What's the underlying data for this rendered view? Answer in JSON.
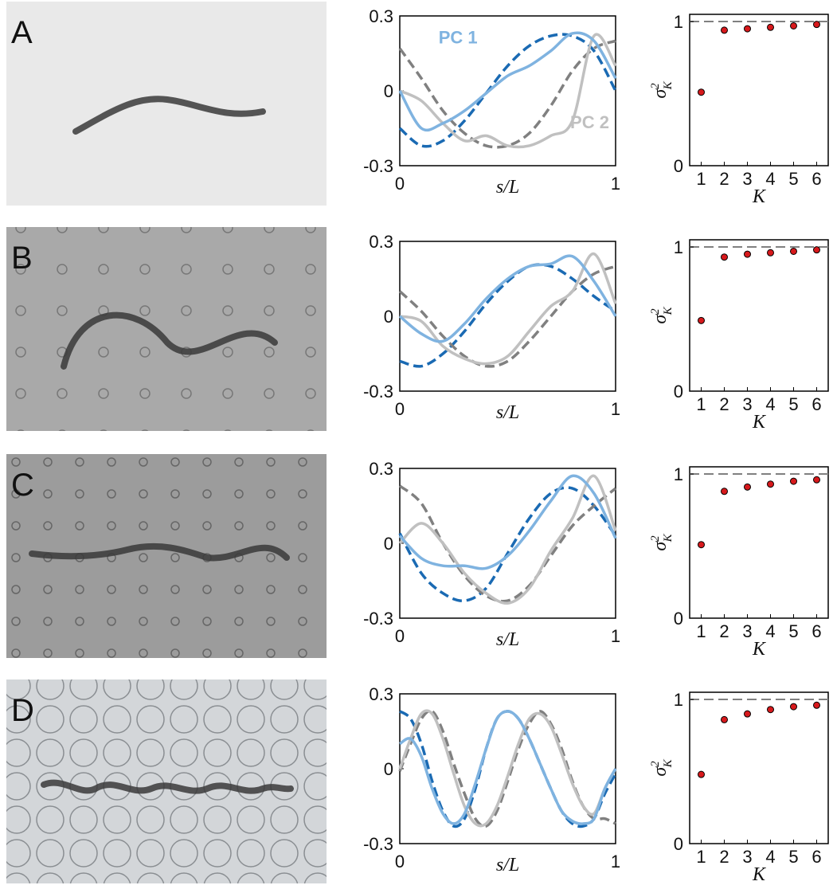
{
  "chart_data": [
    {
      "type": "line",
      "panel_label": "A",
      "x": [
        0,
        0.1,
        0.2,
        0.3,
        0.4,
        0.5,
        0.6,
        0.7,
        0.8,
        0.9,
        1
      ],
      "series": [
        {
          "color": "#1a6ab3",
          "dash": true,
          "values": [
            -0.15,
            -0.22,
            -0.2,
            -0.12,
            -0.01,
            0.1,
            0.18,
            0.22,
            0.22,
            0.16,
            0.0
          ]
        },
        {
          "color": "#808080",
          "dash": true,
          "values": [
            0.17,
            0.05,
            -0.08,
            -0.17,
            -0.22,
            -0.22,
            -0.17,
            -0.06,
            0.08,
            0.17,
            0.2
          ]
        },
        {
          "color": "#c0c0c0",
          "dash": false,
          "values": [
            0.0,
            -0.04,
            -0.13,
            -0.2,
            -0.18,
            -0.22,
            -0.22,
            -0.18,
            -0.12,
            0.22,
            0.1
          ]
        },
        {
          "color": "#7fb3e0",
          "dash": false,
          "values": [
            0.0,
            -0.15,
            -0.13,
            -0.08,
            -0.01,
            0.06,
            0.1,
            0.16,
            0.23,
            0.2,
            0.05
          ]
        }
      ],
      "annotations": [
        {
          "text": "PC 1",
          "color": "#7fb3e0"
        },
        {
          "text": "PC 2",
          "color": "#c0c0c0"
        }
      ],
      "xlim": [
        0,
        1
      ],
      "ylim": [
        -0.3,
        0.3
      ],
      "xticks": [
        0,
        1
      ],
      "yticks": [
        -0.3,
        0,
        0.3
      ],
      "x_label": "s/L"
    },
    {
      "type": "scatter",
      "x": [
        1,
        2,
        3,
        4,
        5,
        6
      ],
      "values": [
        0.51,
        0.94,
        0.95,
        0.96,
        0.97,
        0.98
      ],
      "color": "#d7191c",
      "hline": 1,
      "hline_color": "#808080",
      "xlim": [
        0.5,
        6.5
      ],
      "ylim": [
        0,
        1.05
      ],
      "xticks": [
        1,
        2,
        3,
        4,
        5,
        6
      ],
      "yticks": [
        0,
        1
      ],
      "x_label": "K",
      "y_label": "σ",
      "y_label_sup": "2",
      "y_label_sub": "K"
    },
    {
      "type": "line",
      "panel_label": "B",
      "x": [
        0,
        0.1,
        0.2,
        0.3,
        0.4,
        0.5,
        0.6,
        0.7,
        0.8,
        0.9,
        1
      ],
      "series": [
        {
          "color": "#1a6ab3",
          "dash": true,
          "values": [
            -0.18,
            -0.2,
            -0.15,
            -0.06,
            0.05,
            0.14,
            0.2,
            0.2,
            0.15,
            0.08,
            0.02
          ]
        },
        {
          "color": "#808080",
          "dash": true,
          "values": [
            0.1,
            0.02,
            -0.08,
            -0.16,
            -0.2,
            -0.18,
            -0.1,
            0.0,
            0.1,
            0.17,
            0.2
          ]
        },
        {
          "color": "#c0c0c0",
          "dash": false,
          "values": [
            0.0,
            -0.02,
            -0.12,
            -0.17,
            -0.19,
            -0.16,
            -0.06,
            0.04,
            0.1,
            0.25,
            0.05
          ]
        },
        {
          "color": "#7fb3e0",
          "dash": false,
          "values": [
            0.0,
            -0.07,
            -0.1,
            -0.03,
            0.07,
            0.15,
            0.2,
            0.21,
            0.24,
            0.14,
            0.0
          ]
        }
      ],
      "xlim": [
        0,
        1
      ],
      "ylim": [
        -0.3,
        0.3
      ],
      "xticks": [
        0,
        1
      ],
      "yticks": [
        -0.3,
        0,
        0.3
      ],
      "x_label": "s/L"
    },
    {
      "type": "scatter",
      "x": [
        1,
        2,
        3,
        4,
        5,
        6
      ],
      "values": [
        0.49,
        0.93,
        0.95,
        0.96,
        0.97,
        0.98
      ],
      "color": "#d7191c",
      "hline": 1,
      "hline_color": "#808080",
      "xlim": [
        0.5,
        6.5
      ],
      "ylim": [
        0,
        1.05
      ],
      "xticks": [
        1,
        2,
        3,
        4,
        5,
        6
      ],
      "yticks": [
        0,
        1
      ],
      "x_label": "K",
      "y_label": "σ",
      "y_label_sup": "2",
      "y_label_sub": "K"
    },
    {
      "type": "line",
      "panel_label": "C",
      "x": [
        0,
        0.1,
        0.2,
        0.3,
        0.4,
        0.5,
        0.6,
        0.7,
        0.8,
        0.9,
        1
      ],
      "series": [
        {
          "color": "#1a6ab3",
          "dash": true,
          "values": [
            0.04,
            -0.12,
            -0.2,
            -0.23,
            -0.18,
            -0.04,
            0.1,
            0.2,
            0.22,
            0.15,
            0.03
          ]
        },
        {
          "color": "#808080",
          "dash": true,
          "values": [
            0.23,
            0.16,
            0.0,
            -0.13,
            -0.21,
            -0.23,
            -0.17,
            -0.05,
            0.07,
            0.15,
            0.22
          ]
        },
        {
          "color": "#c0c0c0",
          "dash": false,
          "values": [
            0.0,
            0.08,
            0.0,
            -0.12,
            -0.2,
            -0.24,
            -0.18,
            -0.03,
            0.1,
            0.27,
            0.05
          ]
        },
        {
          "color": "#7fb3e0",
          "dash": false,
          "values": [
            0.03,
            -0.06,
            -0.09,
            -0.09,
            -0.1,
            -0.05,
            0.05,
            0.17,
            0.27,
            0.2,
            0.02
          ]
        }
      ],
      "xlim": [
        0,
        1
      ],
      "ylim": [
        -0.3,
        0.3
      ],
      "xticks": [
        0,
        1
      ],
      "yticks": [
        -0.3,
        0,
        0.3
      ],
      "x_label": "s/L"
    },
    {
      "type": "scatter",
      "x": [
        1,
        2,
        3,
        4,
        5,
        6
      ],
      "values": [
        0.51,
        0.88,
        0.91,
        0.93,
        0.95,
        0.96
      ],
      "color": "#d7191c",
      "hline": 1,
      "hline_color": "#808080",
      "xlim": [
        0.5,
        6.5
      ],
      "ylim": [
        0,
        1.05
      ],
      "xticks": [
        1,
        2,
        3,
        4,
        5,
        6
      ],
      "yticks": [
        0,
        1
      ],
      "x_label": "K",
      "y_label": "σ",
      "y_label_sup": "2",
      "y_label_sub": "K"
    },
    {
      "type": "line",
      "panel_label": "D",
      "x": [
        0,
        0.05,
        0.1,
        0.15,
        0.2,
        0.25,
        0.3,
        0.35,
        0.4,
        0.45,
        0.5,
        0.55,
        0.6,
        0.65,
        0.7,
        0.75,
        0.8,
        0.85,
        0.9,
        0.95,
        1
      ],
      "series": [
        {
          "color": "#1a6ab3",
          "dash": true,
          "values": [
            0.23,
            0.2,
            0.1,
            -0.05,
            -0.17,
            -0.23,
            -0.2,
            -0.08,
            0.08,
            0.2,
            0.23,
            0.2,
            0.12,
            0.02,
            -0.08,
            -0.17,
            -0.22,
            -0.23,
            -0.2,
            -0.1,
            -0.02
          ]
        },
        {
          "color": "#808080",
          "dash": true,
          "values": [
            -0.01,
            0.1,
            0.2,
            0.23,
            0.15,
            0.02,
            -0.1,
            -0.2,
            -0.23,
            -0.17,
            -0.05,
            0.08,
            0.18,
            0.23,
            0.18,
            0.08,
            -0.05,
            -0.15,
            -0.2,
            -0.2,
            -0.22
          ]
        },
        {
          "color": "#c0c0c0",
          "dash": false,
          "values": [
            0.0,
            0.12,
            0.22,
            0.22,
            0.12,
            -0.02,
            -0.15,
            -0.22,
            -0.22,
            -0.15,
            -0.03,
            0.1,
            0.2,
            0.22,
            0.17,
            0.06,
            -0.06,
            -0.15,
            -0.18,
            -0.08,
            0.0
          ]
        },
        {
          "color": "#7fb3e0",
          "dash": false,
          "values": [
            0.1,
            0.12,
            0.05,
            -0.08,
            -0.18,
            -0.22,
            -0.18,
            -0.06,
            0.08,
            0.2,
            0.23,
            0.2,
            0.12,
            0.02,
            -0.08,
            -0.17,
            -0.21,
            -0.22,
            -0.2,
            -0.08,
            0.0
          ]
        }
      ],
      "xlim": [
        0,
        1
      ],
      "ylim": [
        -0.3,
        0.3
      ],
      "xticks": [
        0,
        1
      ],
      "yticks": [
        -0.3,
        0,
        0.3
      ],
      "x_label": "s/L"
    },
    {
      "type": "scatter",
      "x": [
        1,
        2,
        3,
        4,
        5,
        6
      ],
      "values": [
        0.48,
        0.86,
        0.9,
        0.93,
        0.95,
        0.96
      ],
      "color": "#d7191c",
      "hline": 1,
      "hline_color": "#808080",
      "xlim": [
        0.5,
        6.5
      ],
      "ylim": [
        0,
        1.05
      ],
      "xticks": [
        1,
        2,
        3,
        4,
        5,
        6
      ],
      "yticks": [
        0,
        1
      ],
      "x_label": "K",
      "y_label": "σ",
      "y_label_sup": "2",
      "y_label_sub": "K"
    }
  ]
}
